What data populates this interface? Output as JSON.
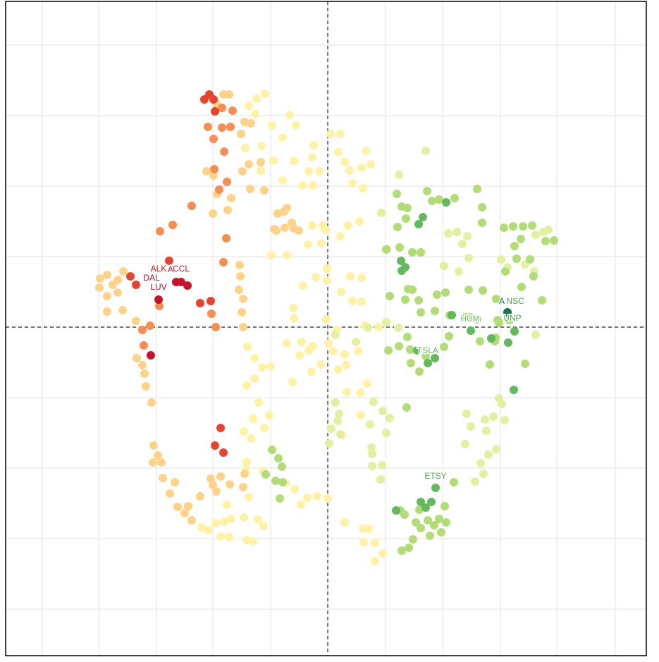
{
  "chart_data": {
    "type": "scatter",
    "xlim": [
      -457,
      452
    ],
    "ylim": [
      -466,
      462
    ],
    "xticks": [
      -405,
      -325,
      -243,
      -163,
      -81,
      0,
      82,
      163,
      245,
      325,
      408
    ],
    "yticks": [
      400,
      300,
      200,
      100,
      0,
      -100,
      -200,
      -300,
      -400
    ],
    "grid": true,
    "zero_lines": true,
    "series": [
      {
        "color": "#fff2a6",
        "x": [
          -89,
          -101,
          -112,
          -103,
          -79,
          -54,
          -45,
          -64,
          -94,
          -117,
          -95,
          -77,
          -64,
          -48,
          -27,
          -22,
          -20,
          -36,
          -21,
          -12,
          4,
          18,
          15,
          24,
          31,
          54,
          48,
          61,
          35,
          50,
          -80,
          -58,
          -28,
          -9,
          -3,
          -22,
          -7,
          18,
          29,
          45,
          -1,
          -1,
          32,
          48,
          -35,
          -17,
          19,
          35,
          48,
          -49,
          -48,
          -2,
          13,
          53,
          72,
          -58,
          -37,
          -21,
          -40,
          -27,
          1,
          8,
          24,
          43,
          15,
          26,
          -50,
          -23,
          -10,
          -114,
          -104,
          -93,
          -81,
          -115,
          -104,
          -98,
          -83,
          -90,
          -106,
          -119,
          -109,
          -115,
          -116,
          -92,
          -60,
          -47,
          -38,
          -29,
          -15,
          0,
          24,
          50,
          58,
          51,
          67,
          78,
          67,
          46,
          56,
          27,
          20,
          -99,
          -91,
          -119,
          -137,
          -147,
          -169,
          -179,
          -159,
          -152,
          -140,
          -115,
          -106,
          -143,
          -112,
          47
        ],
        "values": [
          331,
          324,
          314,
          302,
          286,
          301,
          286,
          269,
          257,
          254,
          222,
          236,
          208,
          236,
          221,
          241,
          258,
          201,
          201,
          221,
          274,
          274,
          248,
          234,
          222,
          250,
          226,
          231,
          204,
          197,
          102,
          102,
          117,
          119,
          138,
          144,
          144,
          129,
          144,
          150,
          83,
          66,
          72,
          70,
          59,
          71,
          50,
          37,
          36,
          27,
          12,
          11,
          -4,
          2,
          0,
          -23,
          -21,
          -27,
          -40,
          -33,
          -23,
          -34,
          -39,
          -34,
          -60,
          -54,
          -78,
          -63,
          -53,
          -28,
          -44,
          -57,
          -56,
          -83,
          -73,
          -107,
          -125,
          -143,
          -130,
          -148,
          -158,
          -191,
          -201,
          -204,
          -221,
          -230,
          -252,
          -242,
          -240,
          -243,
          -277,
          -286,
          -286,
          -305,
          -306,
          -321,
          -332,
          -93,
          -80,
          -92,
          -153,
          -273,
          -282,
          -270,
          -272,
          -276,
          -288,
          -284,
          -278,
          -297,
          -298,
          -302,
          -304,
          -252,
          -241,
          -125
        ]
      },
      {
        "color": "#fdd38a",
        "x": [
          -290,
          -298,
          -305,
          -313,
          -323,
          -324,
          -313,
          -298,
          -291,
          -313,
          -272,
          -271,
          -263,
          -260,
          -258,
          -250,
          -247,
          -241,
          -236,
          -248,
          -234,
          -217,
          -224,
          -213,
          -198,
          -203,
          -193,
          -181,
          -166,
          -163,
          -158,
          -152,
          -139,
          -120,
          -118,
          -162,
          -172,
          -157,
          -142,
          -137,
          -163,
          -123,
          -118,
          -109,
          -148,
          -140,
          -158,
          -121,
          -112,
          -95,
          -90,
          -110,
          -71,
          -62,
          -58,
          -73,
          -61,
          -51,
          -41,
          -48,
          -125,
          -124,
          -126,
          -120,
          -122,
          -120,
          -76
        ],
        "values": [
          79,
          67,
          60,
          74,
          69,
          56,
          44,
          49,
          24,
          22,
          9,
          -44,
          -54,
          -66,
          -84,
          -107,
          -168,
          -182,
          -192,
          -192,
          -214,
          -220,
          -236,
          -255,
          -254,
          -264,
          -274,
          -240,
          -215,
          -224,
          -233,
          -212,
          -223,
          -227,
          -208,
          215,
          221,
          189,
          166,
          183,
          161,
          274,
          291,
          289,
          330,
          330,
          317,
          221,
          231,
          234,
          194,
          196,
          161,
          164,
          169,
          137,
          141,
          148,
          137,
          140,
          88,
          72,
          53,
          40,
          21,
          0,
          139
        ]
      },
      {
        "color": "#f68d52",
        "x": [
          -170,
          -162,
          -147,
          -161,
          -143,
          -154,
          -193,
          -238,
          -220,
          -263,
          -252,
          -261,
          -239,
          -159,
          -165,
          -144,
          -148,
          -150,
          -135,
          -150,
          -138
        ],
        "values": [
          284,
          267,
          249,
          224,
          206,
          195,
          172,
          136,
          145,
          -4,
          2,
          -26,
          30,
          0,
          19,
          126,
          92,
          311,
          307,
          283,
          284
        ]
      },
      {
        "color": "#e4452f",
        "x": [
          -168,
          -175,
          -162,
          -160,
          -280,
          -272,
          -225,
          -181,
          -160,
          -148,
          -152,
          -166
        ],
        "values": [
          330,
          323,
          323,
          306,
          72,
          60,
          94,
          34,
          -168,
          -178,
          -143,
          37
        ]
      },
      {
        "color": "#c2142d",
        "x": [
          -215,
          -208,
          -199,
          -240,
          -251
        ],
        "values": [
          64,
          64,
          59,
          39,
          -40
        ]
      },
      {
        "color": "#e3f0a2",
        "x": [
          11,
          16,
          14,
          5,
          18,
          2,
          65,
          60,
          78,
          88,
          83,
          63,
          63,
          77,
          75,
          62,
          101,
          76,
          84,
          57,
          100,
          11,
          139,
          171,
          183,
          198,
          191,
          200,
          246,
          255,
          280,
          306,
          313,
          295,
          293,
          295,
          255,
          243,
          247,
          235,
          225,
          197,
          195,
          203,
          223,
          217,
          209,
          221,
          228,
          239,
          251,
          165,
          186,
          83,
          40
        ],
        "values": [
          -107,
          -123,
          -133,
          -144,
          -152,
          -165,
          -106,
          -138,
          -119,
          -129,
          -150,
          -180,
          -197,
          -196,
          -216,
          -171,
          216,
          162,
          111,
          -1,
          -1,
          -11,
          250,
          133,
          135,
          129,
          118,
          98,
          96,
          85,
          89,
          135,
          138,
          131,
          79,
          -11,
          11,
          -101,
          -109,
          -127,
          -147,
          -123,
          -166,
          -141,
          -131,
          -193,
          -219,
          -208,
          -181,
          -173,
          -132,
          87,
          79,
          7,
          -21
        ]
      },
      {
        "color": "#b2dc78",
        "x": [
          98,
          105,
          113,
          111,
          99,
          83,
          102,
          120,
          132,
          141,
          148,
          158,
          180,
          212,
          219,
          219,
          250,
          263,
          277,
          290,
          274,
          265,
          309,
          321,
          268,
          252,
          275,
          292,
          304,
          287,
          239,
          200,
          220,
          196,
          203,
          212,
          241,
          258,
          243,
          238,
          216,
          230,
          237,
          280,
          110,
          88,
          114,
          120,
          129,
          152,
          173,
          155,
          167,
          132,
          113,
          101,
          86,
          117,
          118,
          130,
          139,
          165,
          172,
          112,
          -79,
          -70,
          -65,
          -74,
          -64,
          -88,
          -68,
          103,
          109,
          125,
          142,
          151,
          158,
          166,
          168,
          145,
          121,
          115,
          105,
          130,
          161,
          132,
          179
        ],
        "values": [
          189,
          171,
          169,
          154,
          142,
          110,
          113,
          106,
          106,
          193,
          179,
          181,
          183,
          196,
          170,
          148,
          141,
          143,
          143,
          144,
          125,
          115,
          122,
          123,
          97,
          79,
          57,
          72,
          38,
          96,
          40,
          53,
          52,
          14,
          14,
          11,
          10,
          10,
          6,
          -15,
          -20,
          -53,
          -20,
          -52,
          39,
          44,
          54,
          53,
          38,
          23,
          17,
          46,
          49,
          21,
          -14,
          -27,
          -33,
          -32,
          -51,
          -63,
          -41,
          -28,
          -13,
          -114,
          -174,
          -186,
          -198,
          -218,
          -220,
          -209,
          -243,
          -260,
          -266,
          -277,
          -274,
          -281,
          -272,
          -254,
          -277,
          -296,
          -301,
          -313,
          -317,
          -259,
          -291,
          -285,
          -220
        ]
      },
      {
        "color": "#63b95c",
        "x": [
          168,
          135,
          129,
          105,
          110,
          104,
          176,
          203,
          232,
          265,
          256,
          264,
          153,
          132,
          147,
          139,
          97,
          127,
          142,
          152
        ],
        "values": [
          177,
          156,
          146,
          80,
          85,
          94,
          17,
          -5,
          -16,
          -6,
          -22,
          -89,
          -228,
          -248,
          -248,
          -256,
          -260,
          -33,
          -51,
          -44
        ]
      },
      {
        "color": "#17744a",
        "x": [
          255
        ],
        "values": [
          21
        ]
      }
    ],
    "annotations": [
      {
        "text": "ALK",
        "x": -240,
        "y": 82,
        "color": "#b5122b"
      },
      {
        "text": "A",
        "x": -223,
        "y": 81,
        "color": "#b5122b"
      },
      {
        "text": "CCL",
        "x": -208,
        "y": 82,
        "color": "#b5122b"
      },
      {
        "text": "DAL",
        "x": -250,
        "y": 69,
        "color": "#b5122b"
      },
      {
        "text": "LUV",
        "x": -240,
        "y": 56,
        "color": "#b5122b"
      },
      {
        "text": "A",
        "x": 247,
        "y": 36,
        "color": "#17744a"
      },
      {
        "text": "NSC",
        "x": 266,
        "y": 36,
        "color": "#4fa85a"
      },
      {
        "text": "HUM",
        "x": 202,
        "y": 11,
        "color": "#6cbf5f"
      },
      {
        "text": "UNP",
        "x": 262,
        "y": 12,
        "color": "#4fa85a"
      },
      {
        "text": "TSLA",
        "x": 142,
        "y": -34,
        "color": "#6cbf5f"
      },
      {
        "text": "ETSY",
        "x": 153,
        "y": -212,
        "color": "#4fa85a"
      }
    ]
  }
}
